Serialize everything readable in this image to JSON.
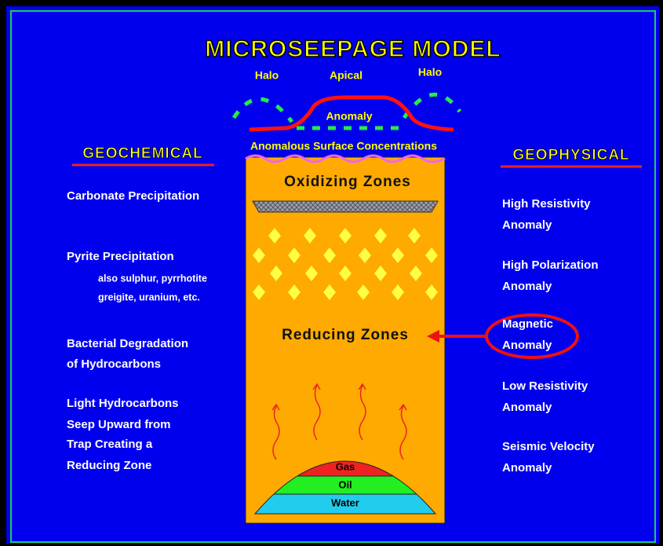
{
  "title": "MICROSEEPAGE MODEL",
  "surface": {
    "halo_left": "Halo",
    "apical": "Apical",
    "halo_right": "Halo",
    "anomaly": "Anomaly",
    "concentrations": "Anomalous Surface Concentrations"
  },
  "geochemical": {
    "heading": "GEOCHEMICAL",
    "items": [
      [
        "Carbonate Precipitation"
      ],
      [
        "Pyrite Precipitation"
      ],
      [
        "Bacterial Degradation",
        "of Hydrocarbons"
      ],
      [
        "Light Hydrocarbons",
        "Seep Upward from",
        "Trap Creating a",
        "Reducing Zone"
      ]
    ],
    "note": [
      "also sulphur, pyrrhotite",
      "greigite, uranium, etc."
    ]
  },
  "geophysical": {
    "heading": "GEOPHYSICAL",
    "items": [
      [
        "High Resistivity",
        "Anomaly"
      ],
      [
        "High Polarization",
        "Anomaly"
      ],
      [
        "Magnetic",
        "Anomaly"
      ],
      [
        "Low Resistivity",
        "Anomaly"
      ],
      [
        "Seismic Velocity",
        "Anomaly"
      ]
    ]
  },
  "column": {
    "oxidizing": "Oxidizing Zones",
    "reducing": "Reducing Zones"
  },
  "trap": [
    "Gas",
    "Oil",
    "Water"
  ]
}
